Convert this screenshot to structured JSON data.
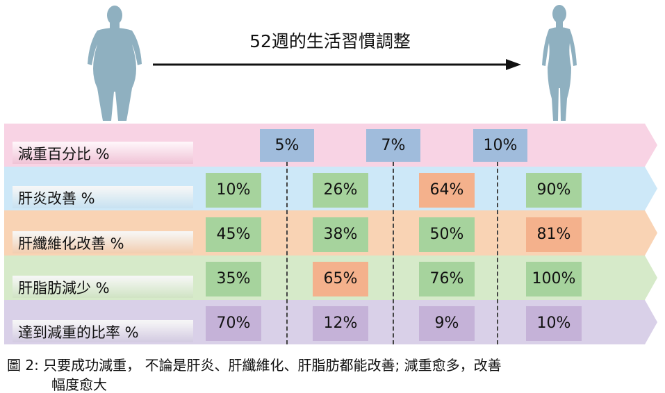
{
  "title": "52週的生活習慣調整",
  "figures": {
    "before": "obese-figure-icon",
    "after": "slim-figure-icon",
    "color": "#8fb0c0"
  },
  "weight_loss": {
    "label": "減重百分比 %",
    "values": [
      "5%",
      "7%",
      "10%"
    ],
    "color": "#a0bcdc"
  },
  "rows": [
    {
      "label": "肝炎改善 %",
      "color": "#cde8f8",
      "values": [
        {
          "v": "10%",
          "c": "#a6d39d"
        },
        {
          "v": "26%",
          "c": "#a6d39d"
        },
        {
          "v": "64%",
          "c": "#f4b18c"
        },
        {
          "v": "90%",
          "c": "#a6d39d"
        }
      ]
    },
    {
      "label": "肝纖維化改善 %",
      "color": "#f9d3b4",
      "values": [
        {
          "v": "45%",
          "c": "#a6d39d"
        },
        {
          "v": "38%",
          "c": "#a6d39d"
        },
        {
          "v": "50%",
          "c": "#a6d39d"
        },
        {
          "v": "81%",
          "c": "#f4b18c"
        }
      ]
    },
    {
      "label": "肝脂肪減少 %",
      "color": "#d6eac9",
      "values": [
        {
          "v": "35%",
          "c": "#a6d39d"
        },
        {
          "v": "65%",
          "c": "#f4b18c"
        },
        {
          "v": "76%",
          "c": "#a6d39d"
        },
        {
          "v": "100%",
          "c": "#a6d39d"
        }
      ]
    },
    {
      "label": "達到減重的比率 %",
      "color": "#d9d0e8",
      "values": [
        {
          "v": "70%",
          "c": "#c5b2d8"
        },
        {
          "v": "12%",
          "c": "#c5b2d8"
        },
        {
          "v": "9%",
          "c": "#c5b2d8"
        },
        {
          "v": "10%",
          "c": "#c5b2d8"
        }
      ]
    }
  ],
  "caption": {
    "line1": "圖 2: 只要成功減重， 不論是肝炎、肝纖維化、肝脂肪都能改善; 減重愈多，改善",
    "line2": "幅度愈大"
  }
}
